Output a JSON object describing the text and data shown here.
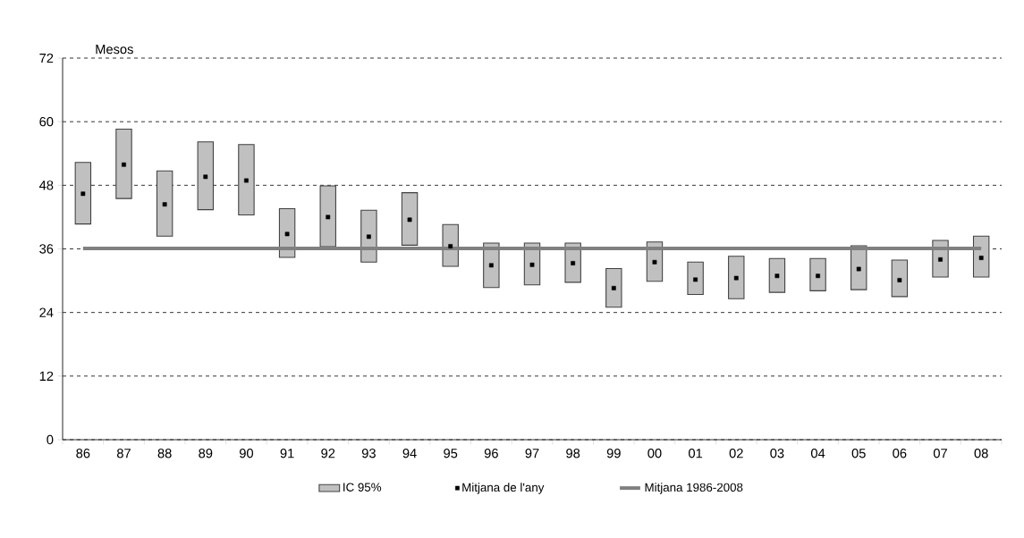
{
  "chart_data": {
    "type": "bar",
    "ylabel": "Mesos",
    "categories": [
      "86",
      "87",
      "88",
      "89",
      "90",
      "91",
      "92",
      "93",
      "94",
      "95",
      "96",
      "97",
      "98",
      "99",
      "00",
      "01",
      "02",
      "03",
      "04",
      "05",
      "06",
      "07",
      "08"
    ],
    "ylim": [
      0,
      72
    ],
    "yticks": [
      0,
      12,
      24,
      36,
      48,
      60,
      72
    ],
    "grid": "y",
    "legend": "bottom",
    "series": [
      {
        "name": "IC 95%",
        "color": "#c0c0c0",
        "base": [
          40.7,
          45.5,
          38.4,
          43.4,
          42.4,
          34.4,
          36.4,
          33.5,
          36.7,
          32.7,
          28.7,
          29.2,
          29.7,
          25.0,
          29.9,
          27.4,
          26.6,
          27.8,
          28.1,
          28.3,
          27.0,
          30.7,
          30.7
        ],
        "values": [
          11.6,
          13.1,
          12.3,
          12.8,
          13.3,
          9.2,
          11.5,
          9.8,
          9.9,
          7.9,
          8.4,
          7.9,
          7.4,
          7.3,
          7.4,
          6.1,
          8.0,
          6.4,
          6.1,
          8.3,
          6.9,
          6.9,
          7.7
        ]
      },
      {
        "name": "Mitjana de l'any",
        "type": "scatter",
        "marker": "square",
        "color": "#000000",
        "values": [
          46.4,
          51.9,
          44.4,
          49.6,
          48.9,
          38.8,
          42.0,
          38.3,
          41.5,
          36.5,
          32.9,
          33.0,
          33.3,
          28.6,
          33.5,
          30.2,
          30.5,
          30.9,
          30.9,
          32.2,
          30.1,
          34.0,
          34.3
        ]
      },
      {
        "name": "Mitjana 1986-2008",
        "type": "line",
        "color": "#808080",
        "values": [
          36.1,
          36.1,
          36.1,
          36.1,
          36.1,
          36.1,
          36.1,
          36.1,
          36.1,
          36.1,
          36.1,
          36.1,
          36.1,
          36.1,
          36.1,
          36.1,
          36.1,
          36.1,
          36.1,
          36.1,
          36.1,
          36.1,
          36.1
        ]
      }
    ]
  }
}
